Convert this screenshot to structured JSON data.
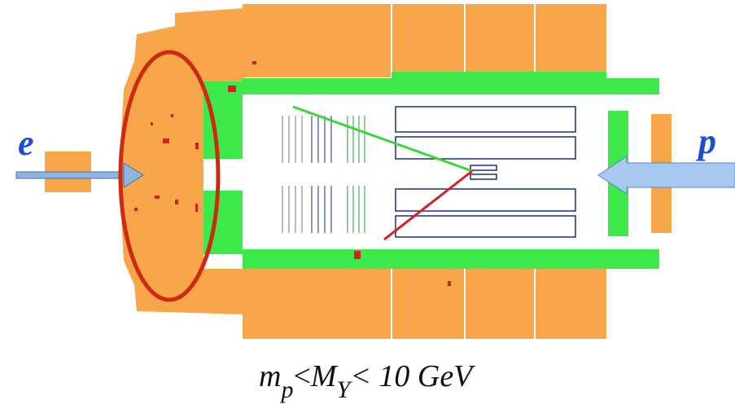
{
  "labels": {
    "electron": "e",
    "proton": "p"
  },
  "formula": [
    "m",
    "p",
    "<",
    "M",
    "Y",
    "< 10 GeV"
  ]
}
